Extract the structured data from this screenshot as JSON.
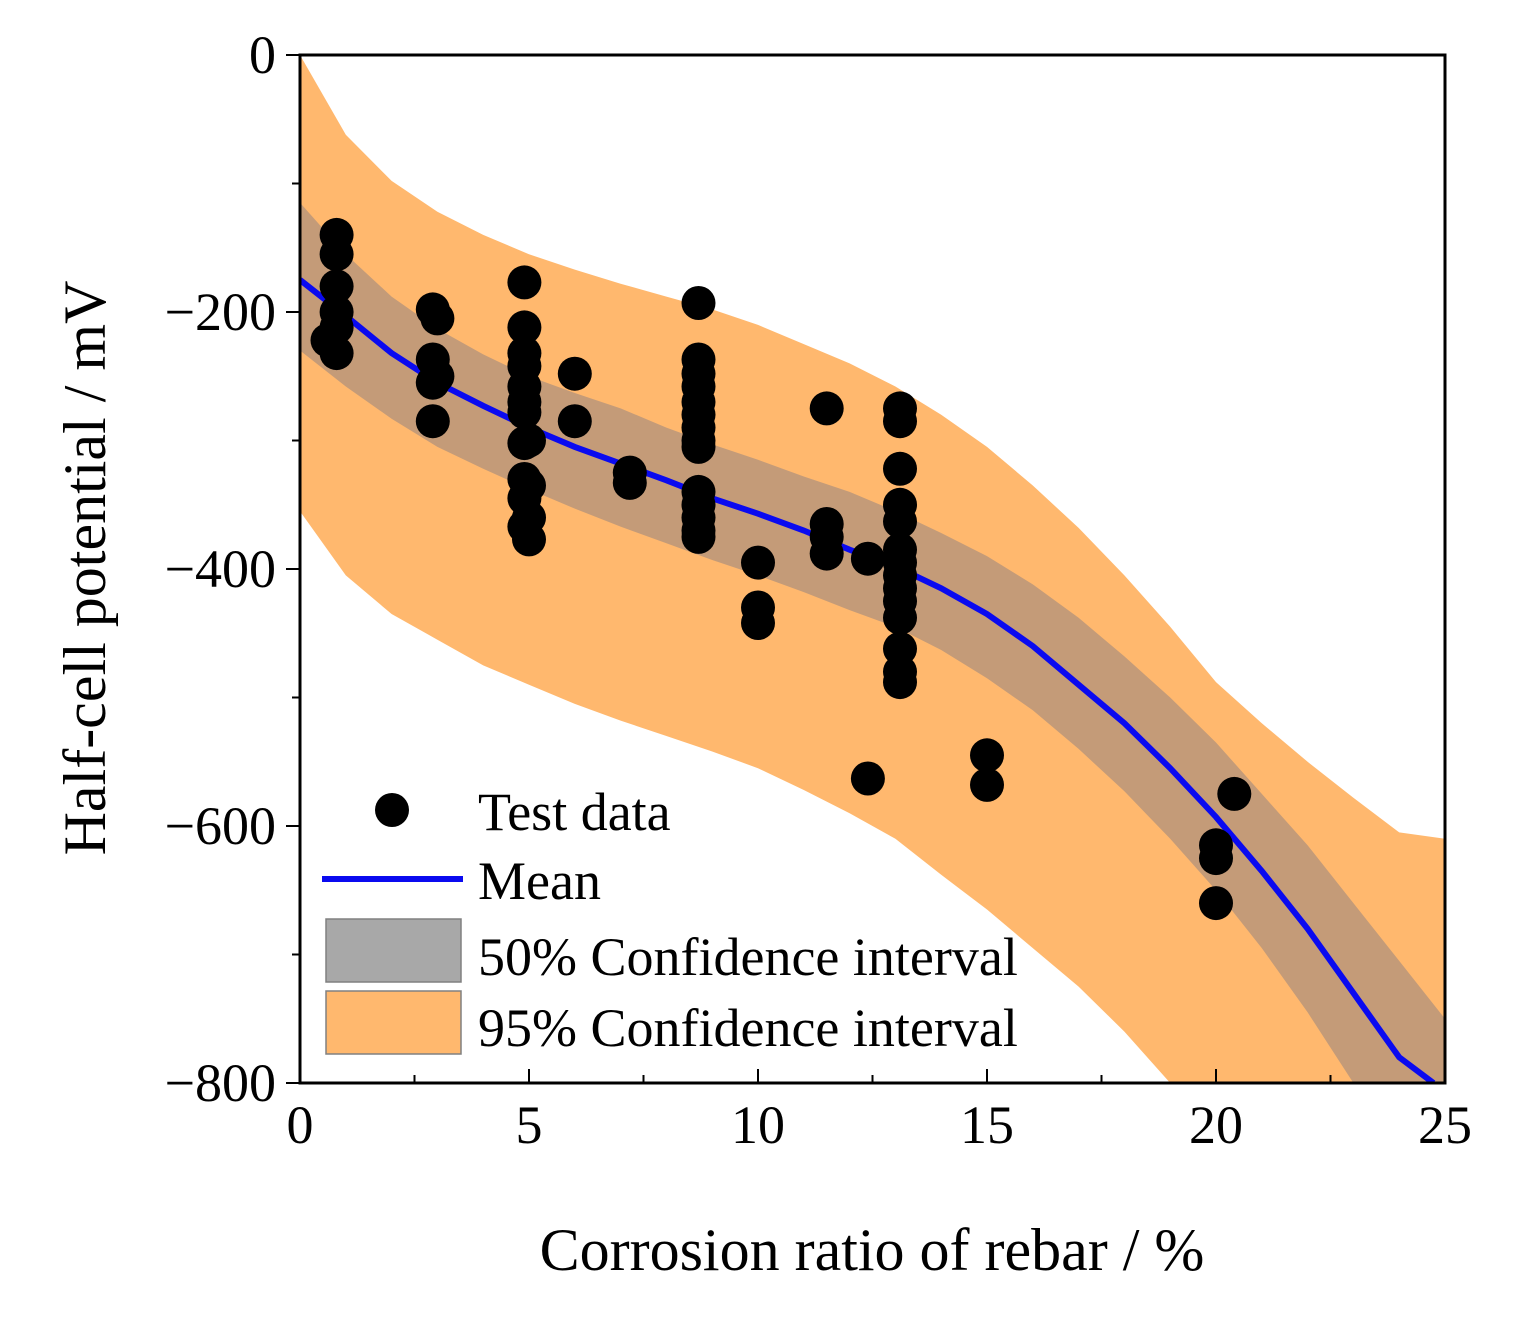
{
  "chart_data": {
    "type": "scatter",
    "xlabel": "Corrosion ratio of rebar / %",
    "ylabel": "Half-cell potential / mV",
    "xlim": [
      0,
      25
    ],
    "ylim": [
      -800,
      0
    ],
    "xticks": [
      0,
      5,
      10,
      15,
      20,
      25
    ],
    "xtick_labels": [
      "0",
      "5",
      "10",
      "15",
      "20",
      "25"
    ],
    "yticks": [
      0,
      -200,
      -400,
      -600,
      -800
    ],
    "ytick_labels": [
      "0",
      "−200",
      "−400",
      "−600",
      "−800"
    ],
    "legend_position": "bottom-left",
    "legend": {
      "test_data": "Test data",
      "mean": "Mean",
      "ci50": "50% Confidence interval",
      "ci95": "95% Confidence interval"
    },
    "colors": {
      "points": "#000000",
      "mean": "#0a0af0",
      "ci50": "#a8a8a8",
      "ci95": "#ffb86e",
      "overlap": "#c49b78"
    },
    "test_data": [
      {
        "x": 0.6,
        "y": -222
      },
      {
        "x": 0.8,
        "y": -232
      },
      {
        "x": 0.8,
        "y": -140
      },
      {
        "x": 0.8,
        "y": -155
      },
      {
        "x": 0.8,
        "y": -180
      },
      {
        "x": 0.8,
        "y": -200
      },
      {
        "x": 0.8,
        "y": -212
      },
      {
        "x": 2.9,
        "y": -198
      },
      {
        "x": 3.0,
        "y": -205
      },
      {
        "x": 2.9,
        "y": -237
      },
      {
        "x": 2.9,
        "y": -255
      },
      {
        "x": 3.0,
        "y": -250
      },
      {
        "x": 2.9,
        "y": -285
      },
      {
        "x": 4.9,
        "y": -177
      },
      {
        "x": 4.9,
        "y": -212
      },
      {
        "x": 4.9,
        "y": -232
      },
      {
        "x": 4.9,
        "y": -242
      },
      {
        "x": 4.9,
        "y": -258
      },
      {
        "x": 4.9,
        "y": -270
      },
      {
        "x": 4.9,
        "y": -278
      },
      {
        "x": 4.9,
        "y": -302
      },
      {
        "x": 5.0,
        "y": -300
      },
      {
        "x": 4.9,
        "y": -330
      },
      {
        "x": 5.0,
        "y": -335
      },
      {
        "x": 4.9,
        "y": -345
      },
      {
        "x": 4.9,
        "y": -367
      },
      {
        "x": 5.0,
        "y": -360
      },
      {
        "x": 5.0,
        "y": -377
      },
      {
        "x": 6.0,
        "y": -248
      },
      {
        "x": 6.0,
        "y": -285
      },
      {
        "x": 7.2,
        "y": -325
      },
      {
        "x": 7.2,
        "y": -333
      },
      {
        "x": 8.7,
        "y": -193
      },
      {
        "x": 8.7,
        "y": -237
      },
      {
        "x": 8.7,
        "y": -248
      },
      {
        "x": 8.7,
        "y": -258
      },
      {
        "x": 8.7,
        "y": -270
      },
      {
        "x": 8.7,
        "y": -280
      },
      {
        "x": 8.7,
        "y": -290
      },
      {
        "x": 8.7,
        "y": -300
      },
      {
        "x": 8.7,
        "y": -305
      },
      {
        "x": 8.7,
        "y": -340
      },
      {
        "x": 8.7,
        "y": -350
      },
      {
        "x": 8.7,
        "y": -360
      },
      {
        "x": 8.7,
        "y": -370
      },
      {
        "x": 8.7,
        "y": -375
      },
      {
        "x": 10.0,
        "y": -395
      },
      {
        "x": 10.0,
        "y": -430
      },
      {
        "x": 10.0,
        "y": -442
      },
      {
        "x": 11.5,
        "y": -275
      },
      {
        "x": 11.5,
        "y": -365
      },
      {
        "x": 11.5,
        "y": -375
      },
      {
        "x": 11.5,
        "y": -388
      },
      {
        "x": 12.4,
        "y": -392
      },
      {
        "x": 12.4,
        "y": -563
      },
      {
        "x": 13.1,
        "y": -275
      },
      {
        "x": 13.1,
        "y": -285
      },
      {
        "x": 13.1,
        "y": -322
      },
      {
        "x": 13.1,
        "y": -350
      },
      {
        "x": 13.1,
        "y": -363
      },
      {
        "x": 13.1,
        "y": -385
      },
      {
        "x": 13.1,
        "y": -395
      },
      {
        "x": 13.1,
        "y": -405
      },
      {
        "x": 13.1,
        "y": -415
      },
      {
        "x": 13.1,
        "y": -425
      },
      {
        "x": 13.1,
        "y": -438
      },
      {
        "x": 13.1,
        "y": -462
      },
      {
        "x": 13.1,
        "y": -480
      },
      {
        "x": 13.1,
        "y": -488
      },
      {
        "x": 15.0,
        "y": -545
      },
      {
        "x": 15.0,
        "y": -568
      },
      {
        "x": 20.0,
        "y": -615
      },
      {
        "x": 20.0,
        "y": -625
      },
      {
        "x": 20.0,
        "y": -660
      },
      {
        "x": 20.4,
        "y": -575
      }
    ],
    "mean": {
      "x": [
        0,
        1,
        2,
        3,
        4,
        5,
        6,
        7,
        8,
        9,
        10,
        11,
        12,
        13,
        14,
        15,
        16,
        17,
        18,
        19,
        20,
        21,
        22,
        23,
        24,
        24.75
      ],
      "y": [
        -175,
        -203,
        -232,
        -255,
        -273,
        -290,
        -305,
        -318,
        -331,
        -345,
        -357,
        -370,
        -385,
        -398,
        -415,
        -435,
        -460,
        -490,
        -520,
        -555,
        -593,
        -635,
        -680,
        -730,
        -780,
        -800
      ]
    },
    "ci50": {
      "x": [
        0,
        1,
        2,
        3,
        4,
        5,
        6,
        7,
        8,
        9,
        10,
        11,
        12,
        13,
        14,
        15,
        16,
        17,
        18,
        19,
        20,
        21,
        22,
        23,
        24,
        25
      ],
      "upper": [
        -115,
        -155,
        -188,
        -213,
        -233,
        -250,
        -263,
        -275,
        -290,
        -303,
        -315,
        -328,
        -340,
        -355,
        -372,
        -390,
        -412,
        -438,
        -468,
        -500,
        -535,
        -575,
        -615,
        -660,
        -705,
        -750
      ],
      "lower": [
        -230,
        -258,
        -283,
        -305,
        -322,
        -338,
        -353,
        -367,
        -380,
        -393,
        -405,
        -418,
        -432,
        -445,
        -463,
        -485,
        -510,
        -540,
        -573,
        -610,
        -650,
        -695,
        -745,
        -800,
        -800,
        -800
      ]
    },
    "ci95": {
      "x": [
        0,
        1,
        2,
        3,
        4,
        5,
        6,
        7,
        8,
        9,
        10,
        11,
        12,
        13,
        14,
        15,
        16,
        17,
        18,
        19,
        20,
        21,
        22,
        23,
        24,
        25
      ],
      "upper": [
        0,
        -62,
        -98,
        -122,
        -140,
        -155,
        -167,
        -178,
        -188,
        -198,
        -210,
        -225,
        -240,
        -258,
        -280,
        -305,
        -335,
        -368,
        -405,
        -445,
        -488,
        -520,
        -550,
        -578,
        -605,
        -610
      ],
      "lower": [
        -355,
        -405,
        -435,
        -455,
        -475,
        -490,
        -505,
        -518,
        -530,
        -542,
        -555,
        -572,
        -590,
        -610,
        -638,
        -665,
        -695,
        -725,
        -760,
        -800,
        -800,
        -800,
        -800,
        -800,
        -800,
        -800
      ]
    }
  }
}
